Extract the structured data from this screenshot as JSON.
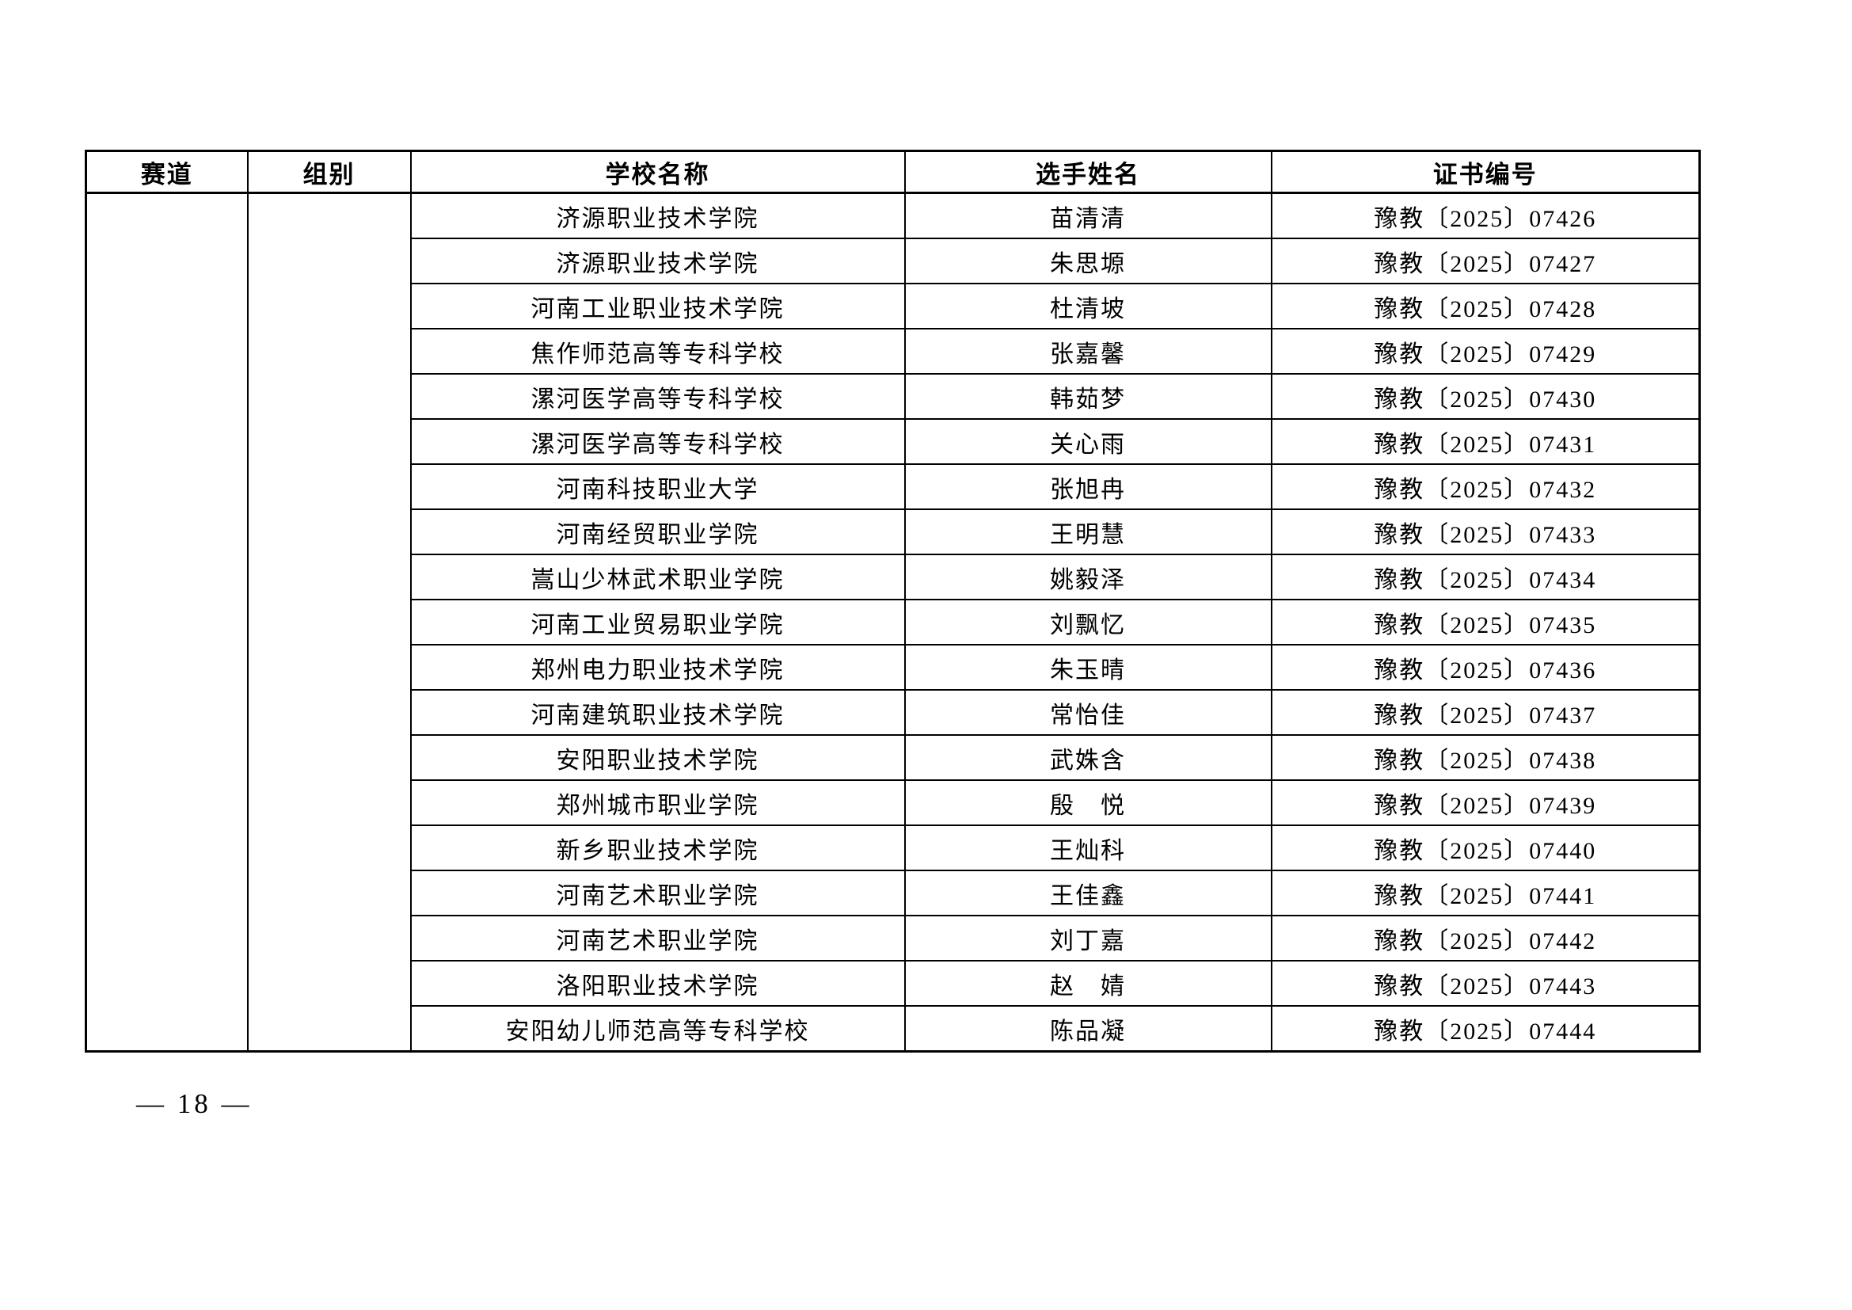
{
  "page": {
    "number_label": "— 18 —"
  },
  "table": {
    "headers": [
      "赛道",
      "组别",
      "学校名称",
      "选手姓名",
      "证书编号"
    ],
    "track_value": "",
    "group_value": "",
    "rows": [
      {
        "school": "济源职业技术学院",
        "name": "苗清清",
        "cert": "豫教〔2025〕07426"
      },
      {
        "school": "济源职业技术学院",
        "name": "朱思塬",
        "cert": "豫教〔2025〕07427"
      },
      {
        "school": "河南工业职业技术学院",
        "name": "杜清坡",
        "cert": "豫教〔2025〕07428"
      },
      {
        "school": "焦作师范高等专科学校",
        "name": "张嘉馨",
        "cert": "豫教〔2025〕07429"
      },
      {
        "school": "漯河医学高等专科学校",
        "name": "韩茹梦",
        "cert": "豫教〔2025〕07430"
      },
      {
        "school": "漯河医学高等专科学校",
        "name": "关心雨",
        "cert": "豫教〔2025〕07431"
      },
      {
        "school": "河南科技职业大学",
        "name": "张旭冉",
        "cert": "豫教〔2025〕07432"
      },
      {
        "school": "河南经贸职业学院",
        "name": "王明慧",
        "cert": "豫教〔2025〕07433"
      },
      {
        "school": "嵩山少林武术职业学院",
        "name": "姚毅泽",
        "cert": "豫教〔2025〕07434"
      },
      {
        "school": "河南工业贸易职业学院",
        "name": "刘飘忆",
        "cert": "豫教〔2025〕07435"
      },
      {
        "school": "郑州电力职业技术学院",
        "name": "朱玉晴",
        "cert": "豫教〔2025〕07436"
      },
      {
        "school": "河南建筑职业技术学院",
        "name": "常怡佳",
        "cert": "豫教〔2025〕07437"
      },
      {
        "school": "安阳职业技术学院",
        "name": "武姝含",
        "cert": "豫教〔2025〕07438"
      },
      {
        "school": "郑州城市职业学院",
        "name": "殷　悦",
        "cert": "豫教〔2025〕07439"
      },
      {
        "school": "新乡职业技术学院",
        "name": "王灿科",
        "cert": "豫教〔2025〕07440"
      },
      {
        "school": "河南艺术职业学院",
        "name": "王佳鑫",
        "cert": "豫教〔2025〕07441"
      },
      {
        "school": "河南艺术职业学院",
        "name": "刘丁嘉",
        "cert": "豫教〔2025〕07442"
      },
      {
        "school": "洛阳职业技术学院",
        "name": "赵　婧",
        "cert": "豫教〔2025〕07443"
      },
      {
        "school": "安阳幼儿师范高等专科学校",
        "name": "陈品凝",
        "cert": "豫教〔2025〕07444"
      }
    ]
  }
}
